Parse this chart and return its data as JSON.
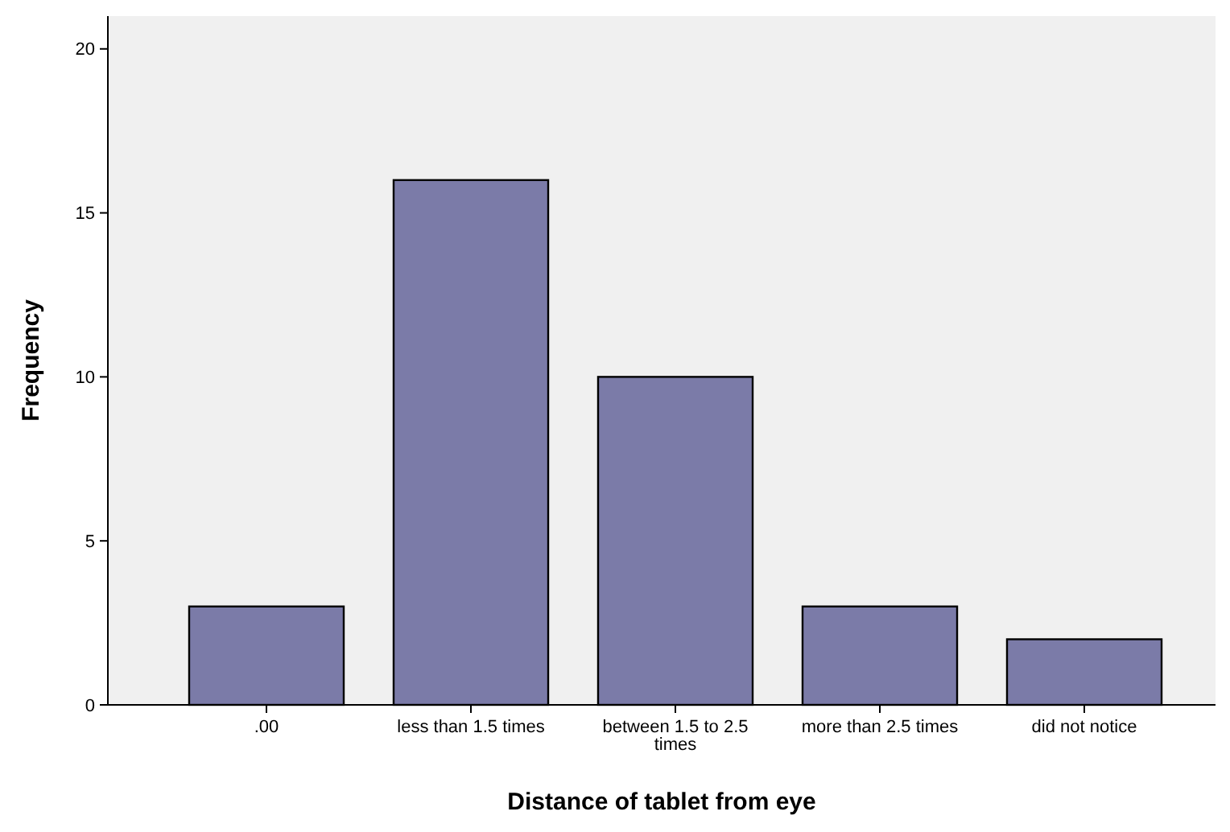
{
  "chart_data": {
    "type": "bar",
    "xlabel": "Distance of tablet from eye",
    "ylabel": "Frequency",
    "categories": [
      ".00",
      "less than 1.5 times",
      "between 1.5 to 2.5 times",
      "more than 2.5 times",
      "did not notice"
    ],
    "values": [
      3,
      16,
      10,
      3,
      2
    ],
    "color": "#7b7ba8",
    "ylim": [
      0,
      21
    ],
    "yticks": [
      0,
      5,
      10,
      15,
      20
    ]
  }
}
